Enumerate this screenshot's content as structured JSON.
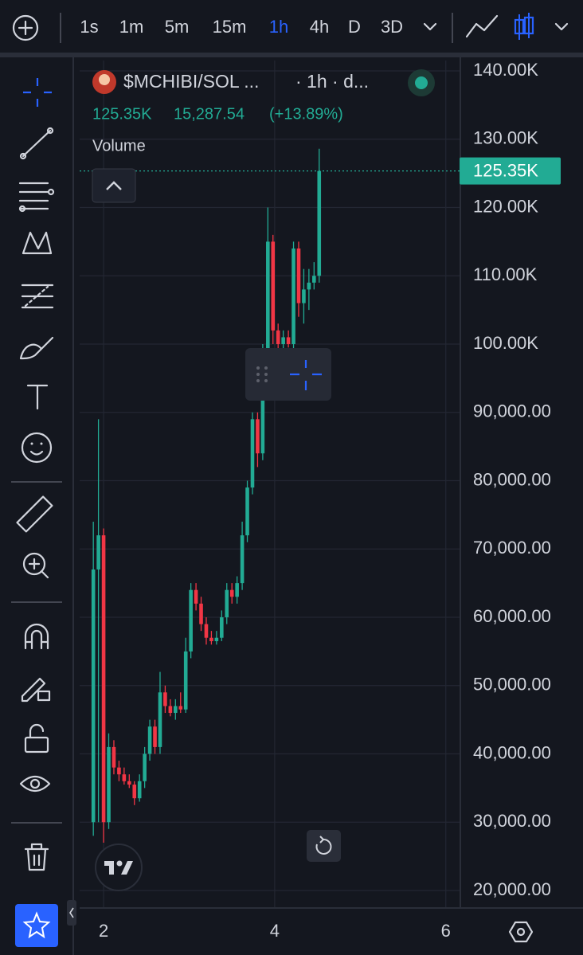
{
  "toolbar": {
    "intervals": [
      "1s",
      "1m",
      "5m",
      "15m",
      "1h",
      "4h",
      "D",
      "3D"
    ],
    "active_interval": "1h"
  },
  "chart_data": {
    "type": "candlestick",
    "symbol": "$MCHIBI/SOL ...",
    "interval_text": "· 1h · d...",
    "legend_values": [
      "125.35K",
      "15,287.54",
      "(+13.89%)"
    ],
    "volume_label": "Volume",
    "x": [
      1.88,
      1.94,
      2.0,
      2.06,
      2.12,
      2.18,
      2.24,
      2.3,
      2.36,
      2.42,
      2.48,
      2.54,
      2.6,
      2.66,
      2.72,
      2.78,
      2.84,
      2.9,
      2.96,
      3.02,
      3.08,
      3.14,
      3.2,
      3.26,
      3.32,
      3.38,
      3.44,
      3.5,
      3.56,
      3.62,
      3.68,
      3.74,
      3.8,
      3.86,
      3.92,
      3.98,
      4.04,
      4.1,
      4.16,
      4.22,
      4.28,
      4.34,
      4.4,
      4.46,
      4.52
    ],
    "open": [
      30000,
      67000,
      72000,
      30000,
      41000,
      38000,
      37000,
      36000,
      35500,
      33500,
      36000,
      40000,
      44000,
      41000,
      49000,
      47000,
      46000,
      47000,
      46500,
      55000,
      64000,
      62000,
      59000,
      57000,
      56500,
      57000,
      60000,
      64000,
      63000,
      65000,
      72000,
      79000,
      89000,
      84000,
      99000,
      115000,
      102000,
      100000,
      101000,
      100000,
      114000,
      106000,
      108000,
      109000,
      110000
    ],
    "high": [
      74000,
      89000,
      73000,
      43000,
      42000,
      39000,
      38000,
      37000,
      36000,
      37000,
      41000,
      45000,
      45000,
      52000,
      50000,
      48000,
      48000,
      49000,
      57000,
      65000,
      65000,
      63000,
      60000,
      58000,
      58000,
      61000,
      65000,
      65000,
      66000,
      74000,
      80000,
      90000,
      90000,
      100000,
      120000,
      116000,
      103000,
      102000,
      102000,
      115000,
      115000,
      111000,
      111000,
      112000,
      128600
    ],
    "low": [
      28000,
      30000,
      27000,
      29000,
      37000,
      36000,
      35500,
      35000,
      32500,
      33000,
      35000,
      39000,
      40000,
      40000,
      46000,
      45500,
      45000,
      46000,
      46000,
      54000,
      61000,
      58000,
      56000,
      56000,
      56000,
      56500,
      59000,
      62000,
      62000,
      64000,
      71000,
      78000,
      82000,
      83000,
      98000,
      100000,
      99000,
      99000,
      99500,
      99000,
      104000,
      103000,
      105000,
      108000,
      109000
    ],
    "close": [
      67000,
      72000,
      30000,
      41000,
      38000,
      37000,
      36000,
      35500,
      33500,
      36000,
      40000,
      44000,
      41000,
      49000,
      47000,
      46000,
      47000,
      46500,
      55000,
      64000,
      62000,
      59000,
      57000,
      56500,
      57000,
      60000,
      64000,
      63000,
      65000,
      72000,
      79000,
      89000,
      84000,
      99000,
      115000,
      102000,
      100000,
      101000,
      100000,
      114000,
      106000,
      108000,
      109000,
      110000,
      125350
    ],
    "up_color": "#22ab94",
    "down_color": "#f23645",
    "xlim": [
      1.72,
      6.17
    ],
    "xticks": [
      2,
      4,
      6
    ],
    "ylim": [
      17430,
      141520
    ],
    "yticks": [
      {
        "value": 140000,
        "label": "140.00K"
      },
      {
        "value": 130000,
        "label": "130.00K"
      },
      {
        "value": 120000,
        "label": "120.00K"
      },
      {
        "value": 110000,
        "label": "110.00K"
      },
      {
        "value": 100000,
        "label": "100.00K"
      },
      {
        "value": 90000,
        "label": "90,000.00"
      },
      {
        "value": 80000,
        "label": "80,000.00"
      },
      {
        "value": 70000,
        "label": "70,000.00"
      },
      {
        "value": 60000,
        "label": "60,000.00"
      },
      {
        "value": 50000,
        "label": "50,000.00"
      },
      {
        "value": 40000,
        "label": "40,000.00"
      },
      {
        "value": 30000,
        "label": "30,000.00"
      },
      {
        "value": 20000,
        "label": "20,000.00"
      }
    ],
    "grid": true,
    "last_price": {
      "value": 125350,
      "label": "125.35K"
    }
  }
}
